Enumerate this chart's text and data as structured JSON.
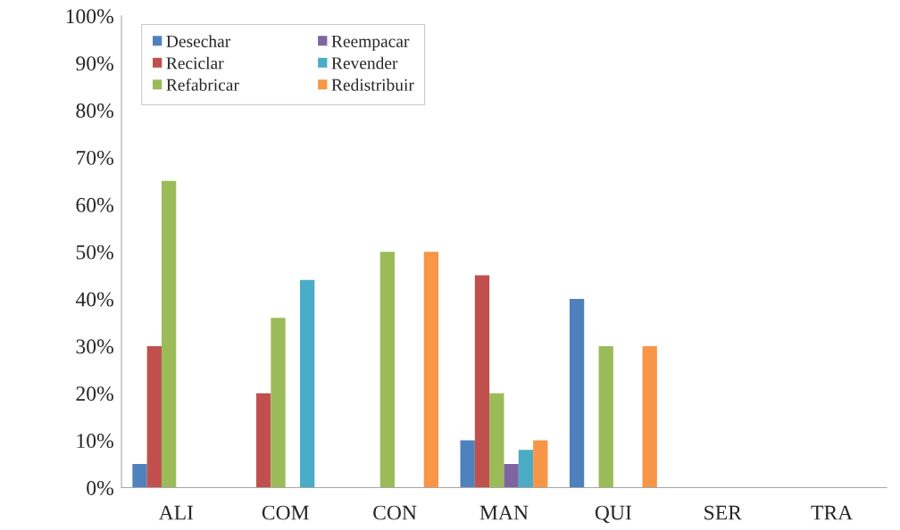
{
  "chart_data": {
    "type": "bar",
    "categories": [
      "ALI",
      "COM",
      "CON",
      "MAN",
      "QUI",
      "SER",
      "TRA"
    ],
    "series": [
      {
        "name": "Desechar",
        "color": "#4f81bd",
        "values": [
          5,
          0,
          0,
          10,
          40,
          0,
          0
        ]
      },
      {
        "name": "Reciclar",
        "color": "#c0504d",
        "values": [
          30,
          20,
          0,
          45,
          0,
          0,
          0
        ]
      },
      {
        "name": "Refabricar",
        "color": "#9bbb59",
        "values": [
          65,
          36,
          50,
          20,
          30,
          0,
          0
        ]
      },
      {
        "name": "Reempacar",
        "color": "#8064a2",
        "values": [
          0,
          0,
          0,
          5,
          0,
          0,
          0
        ]
      },
      {
        "name": "Revender",
        "color": "#4bacc6",
        "values": [
          0,
          44,
          0,
          8,
          0,
          0,
          0
        ]
      },
      {
        "name": "Redistribuir",
        "color": "#f79646",
        "values": [
          0,
          0,
          50,
          10,
          30,
          0,
          0
        ]
      }
    ],
    "ylim": [
      0,
      100
    ],
    "yticks": [
      {
        "value": 0,
        "label": "0%"
      },
      {
        "value": 10,
        "label": "10%"
      },
      {
        "value": 20,
        "label": "20%"
      },
      {
        "value": 30,
        "label": "30%"
      },
      {
        "value": 40,
        "label": "40%"
      },
      {
        "value": 50,
        "label": "50%"
      },
      {
        "value": 60,
        "label": "60%"
      },
      {
        "value": 70,
        "label": "70%"
      },
      {
        "value": 80,
        "label": "80%"
      },
      {
        "value": 90,
        "label": "90%"
      },
      {
        "value": 100,
        "label": "100%"
      }
    ],
    "grid": false,
    "legend": "top left"
  }
}
